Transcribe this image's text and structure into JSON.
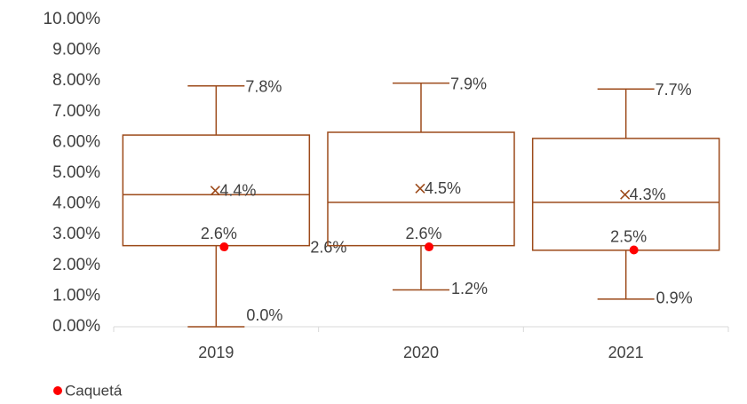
{
  "chart_data": {
    "type": "box",
    "categories": [
      "2019",
      "2020",
      "2021"
    ],
    "ylim": [
      0,
      10
    ],
    "yticks": [
      {
        "value": 0,
        "label": "0.00%"
      },
      {
        "value": 1,
        "label": "1.00%"
      },
      {
        "value": 2,
        "label": "2.00%"
      },
      {
        "value": 3,
        "label": "3.00%"
      },
      {
        "value": 4,
        "label": "4.00%"
      },
      {
        "value": 5,
        "label": "5.00%"
      },
      {
        "value": 6,
        "label": "6.00%"
      },
      {
        "value": 7,
        "label": "7.00%"
      },
      {
        "value": 8,
        "label": "8.00%"
      },
      {
        "value": 9,
        "label": "9.00%"
      },
      {
        "value": 10,
        "label": "10.00%"
      }
    ],
    "boxes": {
      "color": "#9c4a1a",
      "min": [
        0,
        1.2,
        0.9
      ],
      "min_labels": [
        "0.0%",
        "1.2%",
        "0.9%"
      ],
      "q1": [
        2.64,
        2.64,
        2.49
      ],
      "q1_labels": [
        "2.6%",
        null,
        null
      ],
      "median": [
        4.3,
        4.05,
        4.05
      ],
      "q3": [
        6.24,
        6.33,
        6.13
      ],
      "max": [
        7.84,
        7.93,
        7.74
      ],
      "max_labels": [
        "7.8%",
        "7.9%",
        "7.7%"
      ],
      "mean": [
        4.43,
        4.5,
        4.3
      ],
      "mean_labels": [
        "4.4%",
        "4.5%",
        "4.3%"
      ]
    },
    "series": [
      {
        "name": "Caquetá",
        "color": "#ff0000",
        "values": [
          2.6,
          2.6,
          2.5
        ],
        "value_labels": [
          "2.6%",
          "2.6%",
          "2.5%"
        ]
      }
    ]
  }
}
